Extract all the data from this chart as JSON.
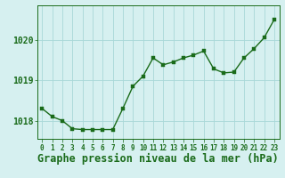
{
  "x": [
    0,
    1,
    2,
    3,
    4,
    5,
    6,
    7,
    8,
    9,
    10,
    11,
    12,
    13,
    14,
    15,
    16,
    17,
    18,
    19,
    20,
    21,
    22,
    23
  ],
  "y": [
    1018.3,
    1018.1,
    1018.0,
    1017.8,
    1017.78,
    1017.78,
    1017.78,
    1017.78,
    1018.3,
    1018.85,
    1019.1,
    1019.55,
    1019.38,
    1019.45,
    1019.55,
    1019.62,
    1019.72,
    1019.28,
    1019.18,
    1019.2,
    1019.55,
    1019.78,
    1020.05,
    1020.5
  ],
  "line_color": "#1a6b1a",
  "marker_color": "#1a6b1a",
  "bg_color": "#d6f0f0",
  "grid_color": "#a8d8d8",
  "xlabel": "Graphe pression niveau de la mer (hPa)",
  "xlabel_color": "#1a6b1a",
  "tick_color": "#1a6b1a",
  "ylim": [
    1017.55,
    1020.85
  ],
  "yticks": [
    1018,
    1019,
    1020
  ],
  "xlim": [
    -0.5,
    23.5
  ],
  "xlabel_fontsize": 8.5,
  "axis_fontsize": 7.0,
  "xtick_fontsize": 5.5,
  "marker_size": 2.5,
  "line_width": 1.0
}
